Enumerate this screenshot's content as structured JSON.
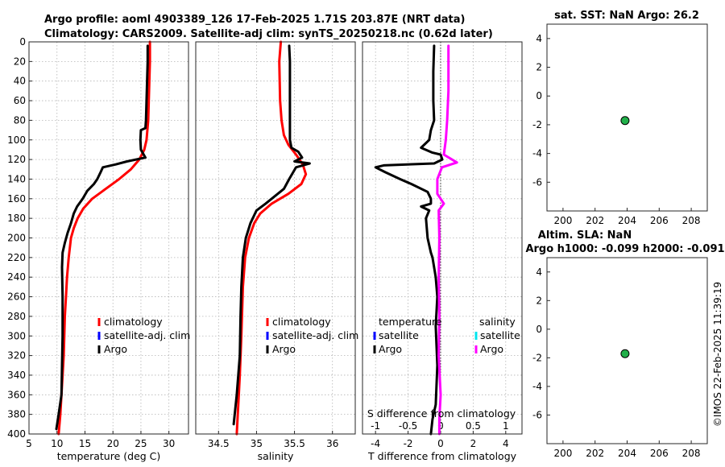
{
  "header": {
    "line1": "Argo profile: aoml 4903389_126 17-Feb-2025 1.71S 203.87E (NRT data)",
    "line2": "Climatology: CARS2009. Satellite-adj clim: synTS_20250218.nc (0.62d later)"
  },
  "footer_stamp": "©IMOS 22-Feb-2025 11:39:19",
  "colors": {
    "climatology": "#ff0000",
    "satellite_clim": "#0000ff",
    "argo": "#000000",
    "sal_diff_argo": "#ff00ff",
    "sal_diff_satellite": "#00e5ee",
    "marker_fill": "#22b04a"
  },
  "chart_data": [
    {
      "id": "temperature",
      "type": "line",
      "xlabel": "temperature (deg C)",
      "ylabel": "",
      "xlim": [
        5,
        33.5
      ],
      "ylim": [
        0,
        400
      ],
      "y_reversed": true,
      "xticks": [
        5,
        10,
        15,
        20,
        25,
        30
      ],
      "yticks": [
        0,
        20,
        40,
        60,
        80,
        100,
        120,
        140,
        160,
        180,
        200,
        220,
        240,
        260,
        280,
        300,
        320,
        340,
        360,
        380,
        400
      ],
      "grid": true,
      "legend": {
        "position": "lower-right",
        "entries": [
          "climatology",
          "satellite-adj. clim",
          "Argo"
        ]
      },
      "series": [
        {
          "name": "climatology",
          "color": "#ff0000",
          "points": [
            [
              26.6,
              0
            ],
            [
              26.6,
              20
            ],
            [
              26.5,
              40
            ],
            [
              26.4,
              60
            ],
            [
              26.3,
              80
            ],
            [
              26.0,
              100
            ],
            [
              25.6,
              110
            ],
            [
              24.7,
              120
            ],
            [
              23.2,
              130
            ],
            [
              21.1,
              140
            ],
            [
              18.7,
              150
            ],
            [
              16.3,
              160
            ],
            [
              14.7,
              170
            ],
            [
              13.7,
              180
            ],
            [
              13.0,
              190
            ],
            [
              12.5,
              200
            ],
            [
              12.1,
              220
            ],
            [
              11.8,
              240
            ],
            [
              11.6,
              260
            ],
            [
              11.4,
              280
            ],
            [
              11.3,
              300
            ],
            [
              11.2,
              320
            ],
            [
              11.0,
              340
            ],
            [
              10.8,
              360
            ],
            [
              10.6,
              380
            ],
            [
              10.3,
              400
            ]
          ]
        },
        {
          "name": "Argo",
          "color": "#000000",
          "points": [
            [
              26.2,
              4
            ],
            [
              26.2,
              20
            ],
            [
              26.1,
              40
            ],
            [
              26.0,
              60
            ],
            [
              25.9,
              80
            ],
            [
              25.8,
              88
            ],
            [
              25.0,
              90
            ],
            [
              24.9,
              100
            ],
            [
              25.0,
              110
            ],
            [
              25.8,
              118
            ],
            [
              22.5,
              122
            ],
            [
              20.5,
              125
            ],
            [
              18.2,
              128
            ],
            [
              17.8,
              133
            ],
            [
              17.2,
              140
            ],
            [
              16.6,
              145
            ],
            [
              15.4,
              152
            ],
            [
              14.6,
              160
            ],
            [
              13.6,
              168
            ],
            [
              13.0,
              175
            ],
            [
              12.5,
              185
            ],
            [
              11.9,
              195
            ],
            [
              11.4,
              205
            ],
            [
              11.0,
              215
            ],
            [
              10.9,
              230
            ],
            [
              11.0,
              260
            ],
            [
              11.0,
              300
            ],
            [
              10.9,
              330
            ],
            [
              10.8,
              360
            ],
            [
              10.3,
              380
            ],
            [
              9.9,
              395
            ]
          ]
        }
      ]
    },
    {
      "id": "salinity",
      "type": "line",
      "xlabel": "salinity",
      "ylabel": "",
      "xlim": [
        34.2,
        36.3
      ],
      "ylim": [
        0,
        400
      ],
      "y_reversed": true,
      "xticks": [
        34.5,
        35,
        35.5,
        36
      ],
      "grid": true,
      "legend": {
        "position": "lower-right",
        "entries": [
          "climatology",
          "satellite-adj. clim",
          "Argo"
        ]
      },
      "series": [
        {
          "name": "climatology",
          "color": "#ff0000",
          "points": [
            [
              35.32,
              0
            ],
            [
              35.3,
              20
            ],
            [
              35.31,
              60
            ],
            [
              35.33,
              80
            ],
            [
              35.36,
              95
            ],
            [
              35.42,
              105
            ],
            [
              35.52,
              115
            ],
            [
              35.61,
              125
            ],
            [
              35.65,
              135
            ],
            [
              35.59,
              145
            ],
            [
              35.42,
              155
            ],
            [
              35.2,
              165
            ],
            [
              35.05,
              175
            ],
            [
              34.97,
              185
            ],
            [
              34.9,
              200
            ],
            [
              34.85,
              220
            ],
            [
              34.82,
              250
            ],
            [
              34.8,
              300
            ],
            [
              34.78,
              340
            ],
            [
              34.76,
              370
            ],
            [
              34.74,
              400
            ]
          ]
        },
        {
          "name": "Argo",
          "color": "#000000",
          "points": [
            [
              35.43,
              4
            ],
            [
              35.44,
              20
            ],
            [
              35.44,
              60
            ],
            [
              35.44,
              100
            ],
            [
              35.46,
              108
            ],
            [
              35.55,
              112
            ],
            [
              35.6,
              118
            ],
            [
              35.5,
              122
            ],
            [
              35.7,
              124
            ],
            [
              35.52,
              128
            ],
            [
              35.43,
              140
            ],
            [
              35.36,
              150
            ],
            [
              35.12,
              165
            ],
            [
              35.0,
              172
            ],
            [
              34.92,
              185
            ],
            [
              34.86,
              200
            ],
            [
              34.82,
              220
            ],
            [
              34.8,
              250
            ],
            [
              34.79,
              280
            ],
            [
              34.78,
              320
            ],
            [
              34.74,
              360
            ],
            [
              34.7,
              390
            ]
          ]
        }
      ]
    },
    {
      "id": "differences",
      "type": "line",
      "xlabel": "T difference from climatology",
      "xlabel_top": "S difference from climatology",
      "xlim": [
        -4.8,
        5
      ],
      "ylim": [
        0,
        400
      ],
      "y_reversed": true,
      "xticks": [
        -4,
        -2,
        0,
        2,
        4
      ],
      "xticks_salinity": [
        -1,
        -0.5,
        0,
        0.5,
        1
      ],
      "salinity_xlim": [
        -1.2,
        1.25
      ],
      "grid": true,
      "legend": {
        "position": "lower-center",
        "temperature_title": "temperature",
        "salinity_title": "salinity",
        "temperature_entries": [
          "satellite",
          "Argo"
        ],
        "salinity_entries": [
          "satellite",
          "Argo"
        ]
      },
      "series": [
        {
          "name": "temperature Argo",
          "color": "#000000",
          "points": [
            [
              -0.4,
              4
            ],
            [
              -0.45,
              30
            ],
            [
              -0.45,
              60
            ],
            [
              -0.4,
              80
            ],
            [
              -0.6,
              90
            ],
            [
              -0.7,
              100
            ],
            [
              -1.2,
              108
            ],
            [
              -0.5,
              113
            ],
            [
              0.0,
              115
            ],
            [
              0.1,
              120
            ],
            [
              -0.4,
              124
            ],
            [
              -3.5,
              126
            ],
            [
              -4.0,
              128
            ],
            [
              -3.4,
              133
            ],
            [
              -2.5,
              140
            ],
            [
              -1.8,
              145
            ],
            [
              -0.8,
              153
            ],
            [
              -0.6,
              160
            ],
            [
              -0.6,
              165
            ],
            [
              -1.2,
              168
            ],
            [
              -0.7,
              172
            ],
            [
              -0.9,
              180
            ],
            [
              -0.8,
              200
            ],
            [
              -0.6,
              215
            ],
            [
              -0.5,
              220
            ],
            [
              -0.3,
              240
            ],
            [
              -0.2,
              260
            ],
            [
              -0.3,
              290
            ],
            [
              -0.2,
              330
            ],
            [
              -0.3,
              370
            ],
            [
              -0.5,
              385
            ],
            [
              -0.6,
              400
            ]
          ]
        },
        {
          "name": "salinity Argo",
          "color": "#ff00ff",
          "points": [
            [
              0.12,
              4
            ],
            [
              0.12,
              50
            ],
            [
              0.1,
              80
            ],
            [
              0.08,
              100
            ],
            [
              0.05,
              115
            ],
            [
              0.25,
              123
            ],
            [
              0.02,
              128
            ],
            [
              -0.05,
              140
            ],
            [
              -0.05,
              155
            ],
            [
              0.05,
              165
            ],
            [
              -0.03,
              172
            ],
            [
              -0.02,
              200
            ],
            [
              -0.03,
              240
            ],
            [
              -0.02,
              280
            ],
            [
              -0.03,
              320
            ],
            [
              0.0,
              360
            ],
            [
              -0.02,
              385
            ],
            [
              -0.02,
              400
            ]
          ]
        }
      ]
    },
    {
      "id": "sst",
      "type": "scatter",
      "title": "sat. SST: NaN Argo: 26.2",
      "xlim": [
        199,
        209
      ],
      "ylim": [
        -8,
        5
      ],
      "xticks": [
        200,
        202,
        204,
        206,
        208
      ],
      "yticks": [
        -6,
        -4,
        -2,
        0,
        2,
        4
      ],
      "grid": false,
      "points": [
        [
          203.87,
          -1.71
        ]
      ]
    },
    {
      "id": "sla",
      "type": "scatter",
      "title_line1": "Altim. SLA: NaN",
      "title_line2": "Argo h1000: -0.099 h2000: -0.091",
      "xlim": [
        199,
        209
      ],
      "ylim": [
        -8,
        5
      ],
      "xticks": [
        200,
        202,
        204,
        206,
        208
      ],
      "yticks": [
        -6,
        -4,
        -2,
        0,
        2,
        4
      ],
      "grid": false,
      "points": [
        [
          203.87,
          -1.71
        ]
      ]
    }
  ]
}
